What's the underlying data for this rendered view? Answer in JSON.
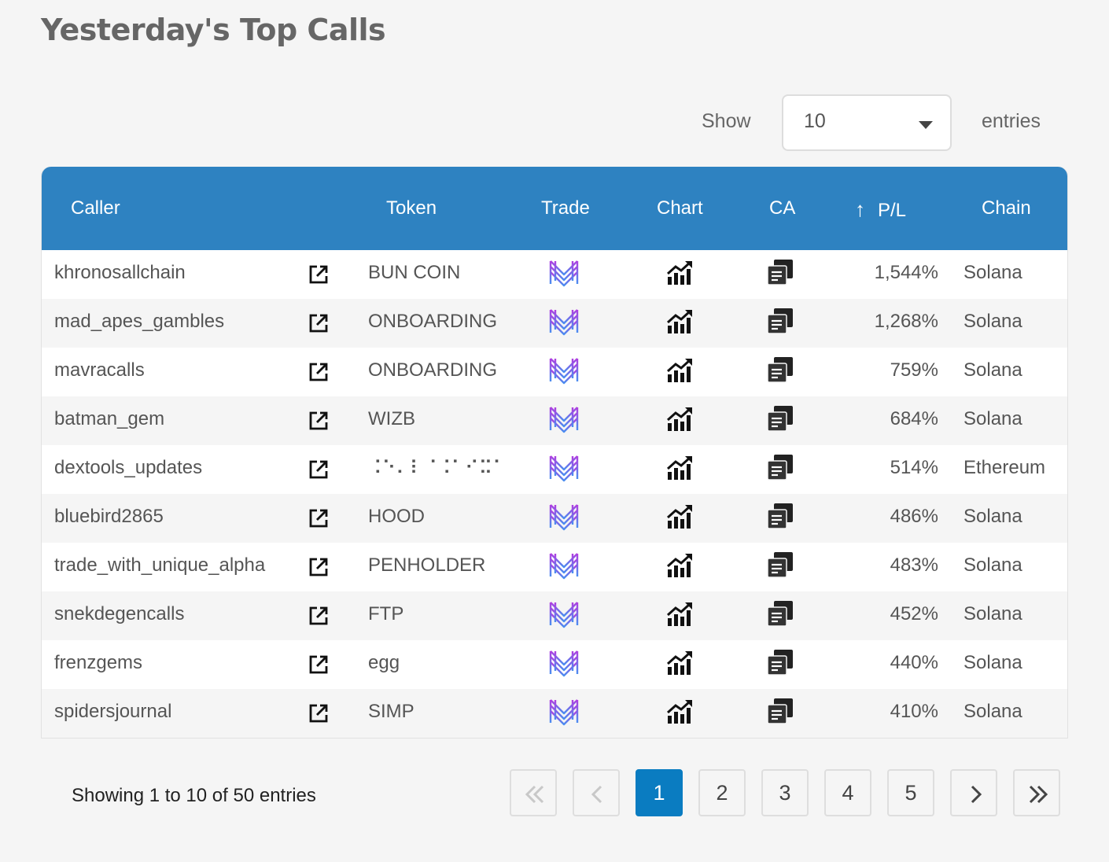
{
  "page": {
    "title": "Yesterday's Top Calls"
  },
  "length_control": {
    "show_label": "Show",
    "selected": "10",
    "entries_label": "entries"
  },
  "table": {
    "headers": {
      "caller": "Caller",
      "token": "Token",
      "trade": "Trade",
      "chart": "Chart",
      "ca": "CA",
      "pl": "P/L",
      "chain": "Chain",
      "pl_sort_icon": "↑"
    },
    "rows": [
      {
        "caller": "khronosallchain",
        "token": "BUN COIN",
        "pl": "1,544%",
        "chain": "Solana"
      },
      {
        "caller": "mad_apes_gambles",
        "token": "ONBOARDING",
        "pl": "1,268%",
        "chain": "Solana"
      },
      {
        "caller": "mavracalls",
        "token": "ONBOARDING",
        "pl": "759%",
        "chain": "Solana"
      },
      {
        "caller": "batman_gem",
        "token": "WIZB",
        "pl": "684%",
        "chain": "Solana"
      },
      {
        "caller": "dextools_updates",
        "token": "⠨⠑⠄⠇⠈⠨⠁⠊⠭⠁",
        "pl": "514%",
        "chain": "Ethereum"
      },
      {
        "caller": "bluebird2865",
        "token": "HOOD",
        "pl": "486%",
        "chain": "Solana"
      },
      {
        "caller": "trade_with_unique_alpha",
        "token": "PENHOLDER",
        "pl": "483%",
        "chain": "Solana"
      },
      {
        "caller": "snekdegencalls",
        "token": "FTP",
        "pl": "452%",
        "chain": "Solana"
      },
      {
        "caller": "frenzgems",
        "token": "egg",
        "pl": "440%",
        "chain": "Solana"
      },
      {
        "caller": "spidersjournal",
        "token": "SIMP",
        "pl": "410%",
        "chain": "Solana"
      }
    ],
    "icons": {
      "link": "external-link-icon",
      "trade": "trade-logo-icon",
      "chart": "chart-growth-icon",
      "ca": "copy-icon"
    }
  },
  "footer": {
    "info": "Showing 1 to 10 of 50 entries",
    "pages": [
      "1",
      "2",
      "3",
      "4",
      "5"
    ],
    "active_page": "1",
    "icons": {
      "first": "double-chevron-left-icon",
      "prev": "chevron-left-icon",
      "next": "chevron-right-icon",
      "last": "double-chevron-right-icon"
    }
  },
  "colors": {
    "header_bg": "#2e82c1",
    "active_page": "#0a7cc1",
    "trade_logo_top": "#b03fe0",
    "trade_logo_bottom": "#4a8ef0"
  }
}
